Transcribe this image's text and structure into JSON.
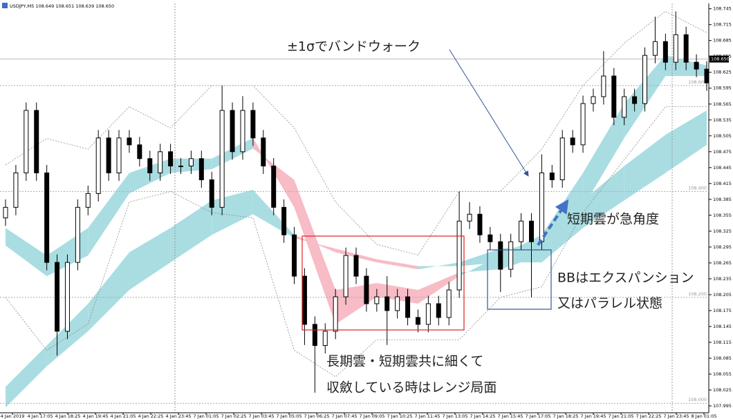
{
  "chart_data": {
    "type": "candlestick",
    "header": "USDJPY,M5  108.649 108.651 108.639 108.650",
    "ylim": [
      107.982,
      108.755
    ],
    "yticks": [
      108.745,
      108.715,
      108.685,
      108.655,
      108.625,
      108.595,
      108.565,
      108.535,
      108.505,
      108.475,
      108.445,
      108.415,
      108.385,
      108.355,
      108.325,
      108.295,
      108.265,
      108.235,
      108.205,
      108.175,
      108.145,
      108.115,
      108.085,
      108.055,
      108.025,
      107.995
    ],
    "x_labels": [
      "4 Jan 2019",
      "4 Jan 17:05",
      "4 Jan 18:25",
      "4 Jan 19:45",
      "4 Jan 21:05",
      "4 Jan 22:25",
      "4 Jan 23:45",
      "7 Jan 01:05",
      "7 Jan 02:25",
      "7 Jan 03:45",
      "7 Jan 05:05",
      "7 Jan 06:25",
      "7 Jan 07:45",
      "7 Jan 09:05",
      "7 Jan 10:25",
      "7 Jan 11:45",
      "7 Jan 13:05",
      "7 Jan 14:25",
      "7 Jan 15:45",
      "7 Jan 17:05",
      "7 Jan 18:25",
      "7 Jan 19:45",
      "7 Jan 21:05",
      "7 Jan 22:25",
      "7 Jan 23:45",
      "8 Jan 01:05"
    ],
    "up_color": "#ffffff",
    "down_color": "#000000",
    "ohlc": [
      [
        108.35,
        108.385,
        108.335,
        108.37
      ],
      [
        108.37,
        108.45,
        108.355,
        108.435
      ],
      [
        108.435,
        108.568,
        108.42,
        108.553
      ],
      [
        108.553,
        108.568,
        108.42,
        108.435
      ],
      [
        108.435,
        108.45,
        108.251,
        108.266
      ],
      [
        108.266,
        108.281,
        108.09,
        108.136
      ],
      [
        108.136,
        108.281,
        108.121,
        108.266
      ],
      [
        108.266,
        108.385,
        108.251,
        108.37
      ],
      [
        108.37,
        108.411,
        108.355,
        108.396
      ],
      [
        108.396,
        108.516,
        108.381,
        108.501
      ],
      [
        108.501,
        108.516,
        108.42,
        108.435
      ],
      [
        108.435,
        108.516,
        108.42,
        108.501
      ],
      [
        108.501,
        108.516,
        108.473,
        108.488
      ],
      [
        108.488,
        108.503,
        108.447,
        108.462
      ],
      [
        108.462,
        108.477,
        108.42,
        108.435
      ],
      [
        108.435,
        108.49,
        108.42,
        108.475
      ],
      [
        108.475,
        108.49,
        108.433,
        108.448
      ],
      [
        108.448,
        108.463,
        108.433,
        108.448
      ],
      [
        108.448,
        108.477,
        108.433,
        108.462
      ],
      [
        108.462,
        108.477,
        108.407,
        108.422
      ],
      [
        108.422,
        108.437,
        108.355,
        108.37
      ],
      [
        108.37,
        108.6,
        108.355,
        108.553
      ],
      [
        108.553,
        108.568,
        108.46,
        108.475
      ],
      [
        108.475,
        108.58,
        108.46,
        108.553
      ],
      [
        108.553,
        108.568,
        108.486,
        108.501
      ],
      [
        108.501,
        108.516,
        108.433,
        108.448
      ],
      [
        108.448,
        108.463,
        108.355,
        108.37
      ],
      [
        108.37,
        108.385,
        108.303,
        108.318
      ],
      [
        108.318,
        108.333,
        108.225,
        108.24
      ],
      [
        108.24,
        108.255,
        108.11,
        108.149
      ],
      [
        108.149,
        108.164,
        108.02,
        108.109
      ],
      [
        108.109,
        108.151,
        108.094,
        108.136
      ],
      [
        108.136,
        108.216,
        108.121,
        108.201
      ],
      [
        108.201,
        108.294,
        108.186,
        108.279
      ],
      [
        108.279,
        108.294,
        108.225,
        108.24
      ],
      [
        108.24,
        108.255,
        108.173,
        108.188
      ],
      [
        108.188,
        108.216,
        108.173,
        108.201
      ],
      [
        108.201,
        108.24,
        108.11,
        108.175
      ],
      [
        108.175,
        108.216,
        108.16,
        108.201
      ],
      [
        108.201,
        108.216,
        108.147,
        108.162
      ],
      [
        108.162,
        108.177,
        108.134,
        108.149
      ],
      [
        108.149,
        108.203,
        108.134,
        108.188
      ],
      [
        108.188,
        108.203,
        108.147,
        108.162
      ],
      [
        108.162,
        108.229,
        108.147,
        108.214
      ],
      [
        108.214,
        108.4,
        108.199,
        108.344
      ],
      [
        108.344,
        108.38,
        108.329,
        108.357
      ],
      [
        108.357,
        108.372,
        108.303,
        108.318
      ],
      [
        108.318,
        108.333,
        108.29,
        108.305
      ],
      [
        108.305,
        108.32,
        108.21,
        108.253
      ],
      [
        108.253,
        108.32,
        108.238,
        108.305
      ],
      [
        108.305,
        108.359,
        108.29,
        108.344
      ],
      [
        108.344,
        108.359,
        108.2,
        108.305
      ],
      [
        108.305,
        108.47,
        108.29,
        108.435
      ],
      [
        108.435,
        108.45,
        108.407,
        108.422
      ],
      [
        108.422,
        108.516,
        108.407,
        108.501
      ],
      [
        108.501,
        108.516,
        108.473,
        108.488
      ],
      [
        108.488,
        108.581,
        108.473,
        108.566
      ],
      [
        108.566,
        108.594,
        108.551,
        108.579
      ],
      [
        108.579,
        108.665,
        108.564,
        108.618
      ],
      [
        108.618,
        108.633,
        108.525,
        108.54
      ],
      [
        108.54,
        108.594,
        108.525,
        108.579
      ],
      [
        108.579,
        108.594,
        108.551,
        108.566
      ],
      [
        108.566,
        108.672,
        108.551,
        108.657
      ],
      [
        108.657,
        108.73,
        108.642,
        108.683
      ],
      [
        108.683,
        108.698,
        108.629,
        108.644
      ],
      [
        108.644,
        108.74,
        108.629,
        108.696
      ],
      [
        108.696,
        108.711,
        108.629,
        108.644
      ],
      [
        108.644,
        108.659,
        108.616,
        108.631
      ],
      [
        108.631,
        108.646,
        108.59,
        108.605
      ]
    ],
    "x": [
      0,
      4,
      8,
      12,
      16,
      20,
      24,
      28,
      32,
      36,
      40,
      44,
      48,
      52,
      56,
      60,
      64,
      68
    ],
    "clouds": [
      {
        "up_color": "#a9dde2",
        "down_color": "#f7bcc6",
        "span_a": [
          108.031,
          108.109,
          108.188,
          108.285,
          108.331,
          108.383,
          108.403,
          108.318,
          108.285,
          108.266,
          108.253,
          108.266,
          108.292,
          108.298,
          108.383,
          108.448,
          108.507,
          108.553
        ],
        "span_b": [
          107.992,
          108.07,
          108.136,
          108.214,
          108.266,
          108.318,
          108.357,
          108.312,
          108.292,
          108.272,
          108.259,
          108.259,
          108.266,
          108.266,
          108.331,
          108.383,
          108.435,
          108.488
        ]
      },
      {
        "up_color": "#a9dde2",
        "down_color": "#f7bcc6",
        "span_a": [
          108.331,
          108.279,
          108.331,
          108.435,
          108.462,
          108.462,
          108.501,
          108.37,
          108.149,
          108.201,
          108.188,
          108.24,
          108.279,
          108.318,
          108.435,
          108.566,
          108.657,
          108.638
        ],
        "span_b": [
          108.298,
          108.24,
          108.279,
          108.396,
          108.435,
          108.442,
          108.481,
          108.422,
          108.214,
          108.227,
          108.214,
          108.247,
          108.253,
          108.279,
          108.37,
          108.501,
          108.618,
          108.618
        ]
      }
    ],
    "bands_color": "#8a8a8a",
    "bands": [
      [
        108.45,
        108.5,
        108.48,
        108.56,
        108.52,
        108.6,
        108.6,
        108.52,
        108.38,
        108.3,
        108.28,
        108.4,
        108.4,
        108.48,
        108.6,
        108.68,
        108.74,
        108.7
      ],
      [
        108.2,
        108.1,
        108.15,
        108.38,
        108.4,
        108.36,
        108.35,
        108.1,
        108.05,
        108.12,
        108.12,
        108.12,
        108.2,
        108.22,
        108.36,
        108.46,
        108.56,
        108.56
      ]
    ],
    "levels": [
      {
        "value": 108.6,
        "label": "108.600"
      },
      {
        "value": 108.4,
        "label": "108.400"
      },
      {
        "value": 108.2,
        "label": "108.200"
      },
      {
        "value": 108.0,
        "label": "108.000"
      }
    ],
    "price": {
      "value": 108.65,
      "label": "108.650"
    },
    "annotations": [
      "±1σでバンドウォーク",
      "短期雲が急角度",
      "BBはエクスパンション",
      "又はパラレル状態",
      "長期雲・短期雲共に細くて",
      "収斂している時はレンジ局面"
    ]
  }
}
